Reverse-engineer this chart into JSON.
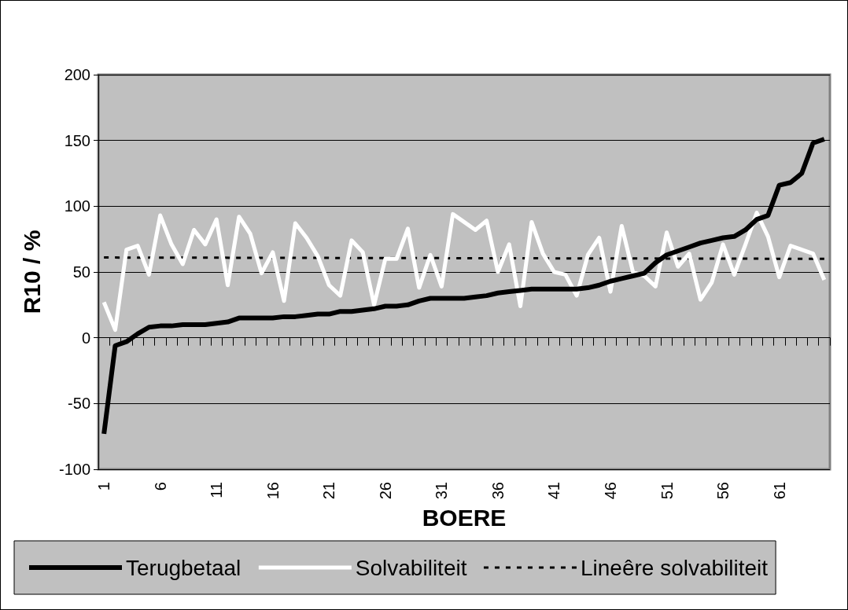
{
  "chart_data": {
    "type": "line",
    "xlabel": "BOERE",
    "ylabel": "R10 / %",
    "categories": [
      "1",
      null,
      null,
      null,
      null,
      "6",
      null,
      null,
      null,
      null,
      "11",
      null,
      null,
      null,
      null,
      "16",
      null,
      null,
      null,
      null,
      "21",
      null,
      null,
      null,
      null,
      "26",
      null,
      null,
      null,
      null,
      "31",
      null,
      null,
      null,
      null,
      "36",
      null,
      null,
      null,
      null,
      "41",
      null,
      null,
      null,
      null,
      "46",
      null,
      null,
      null,
      null,
      "51",
      null,
      null,
      null,
      null,
      "56",
      null,
      null,
      null,
      null,
      "61",
      null,
      null,
      null,
      null
    ],
    "series": [
      {
        "name": "Terugbetaal",
        "color": "#000000",
        "values": [
          -73,
          -6,
          -3,
          3,
          8,
          9,
          9,
          10,
          10,
          10,
          11,
          12,
          15,
          15,
          15,
          15,
          16,
          16,
          17,
          18,
          18,
          20,
          20,
          21,
          22,
          24,
          24,
          25,
          28,
          30,
          30,
          30,
          30,
          31,
          32,
          34,
          35,
          36,
          37,
          37,
          37,
          37,
          37,
          38,
          40,
          43,
          45,
          47,
          49,
          57,
          63,
          66,
          69,
          72,
          74,
          76,
          77,
          82,
          90,
          93,
          116,
          118,
          125,
          148,
          151
        ]
      },
      {
        "name": "Solvabiliteit",
        "color": "#ffffff",
        "values": [
          27,
          6,
          67,
          70,
          48,
          93,
          71,
          56,
          82,
          71,
          90,
          40,
          92,
          79,
          49,
          65,
          28,
          87,
          76,
          62,
          40,
          32,
          74,
          65,
          25,
          60,
          60,
          83,
          38,
          63,
          39,
          94,
          88,
          82,
          89,
          50,
          71,
          24,
          88,
          64,
          50,
          48,
          32,
          63,
          76,
          35,
          85,
          50,
          47,
          39,
          80,
          54,
          64,
          29,
          42,
          71,
          48,
          71,
          95,
          77,
          46,
          70,
          67,
          64,
          44
        ]
      },
      {
        "name": "Lineêre solvabiliteit",
        "color": "#000000",
        "line_style": "dashed",
        "values": [
          61,
          null,
          null,
          null,
          null,
          null,
          null,
          null,
          null,
          null,
          null,
          null,
          null,
          null,
          null,
          null,
          null,
          null,
          null,
          null,
          null,
          null,
          null,
          null,
          null,
          null,
          null,
          null,
          null,
          null,
          null,
          null,
          null,
          null,
          null,
          null,
          null,
          null,
          null,
          null,
          null,
          null,
          null,
          null,
          null,
          null,
          null,
          null,
          null,
          null,
          null,
          null,
          null,
          null,
          null,
          null,
          null,
          null,
          null,
          null,
          null,
          null,
          null,
          null,
          60
        ]
      }
    ],
    "ylim": [
      -100,
      200
    ],
    "yticks": [
      -100,
      -50,
      0,
      50,
      100,
      150,
      200
    ],
    "grid": "y",
    "legend": "bottom",
    "marker": "none",
    "line_style": "solid"
  }
}
